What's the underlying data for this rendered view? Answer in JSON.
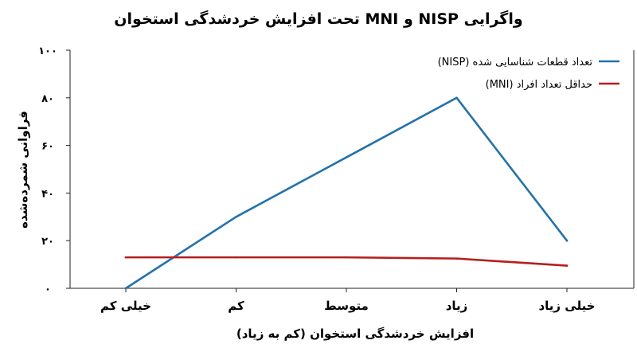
{
  "chart_data": {
    "type": "line",
    "title": "واگرایی NISP و MNI تحت افزایش خردشدگی استخوان",
    "xlabel": "افزایش خردشدگی استخوان (کم به زیاد)",
    "ylabel": "فراوانی شمرده‌شده",
    "categories": [
      "خیلی کم",
      "کم",
      "متوسط",
      "زیاد",
      "خیلی زیاد"
    ],
    "ylim": [
      0,
      100
    ],
    "yticks": [
      "۰",
      "۲۰",
      "۴۰",
      "۶۰",
      "۸۰",
      "۱۰۰"
    ],
    "ytick_values": [
      0,
      20,
      40,
      60,
      80,
      100
    ],
    "grid": false,
    "legend_position": "top-right",
    "series": [
      {
        "name": "تعداد قطعات شناسایی شده (NISP)",
        "color": "#2472aa",
        "values": [
          0,
          30,
          55,
          80,
          20
        ]
      },
      {
        "name": "حداقل تعداد افراد (MNI)",
        "color": "#b51f1f",
        "values": [
          13,
          13,
          13,
          12.5,
          9.5
        ]
      }
    ]
  }
}
